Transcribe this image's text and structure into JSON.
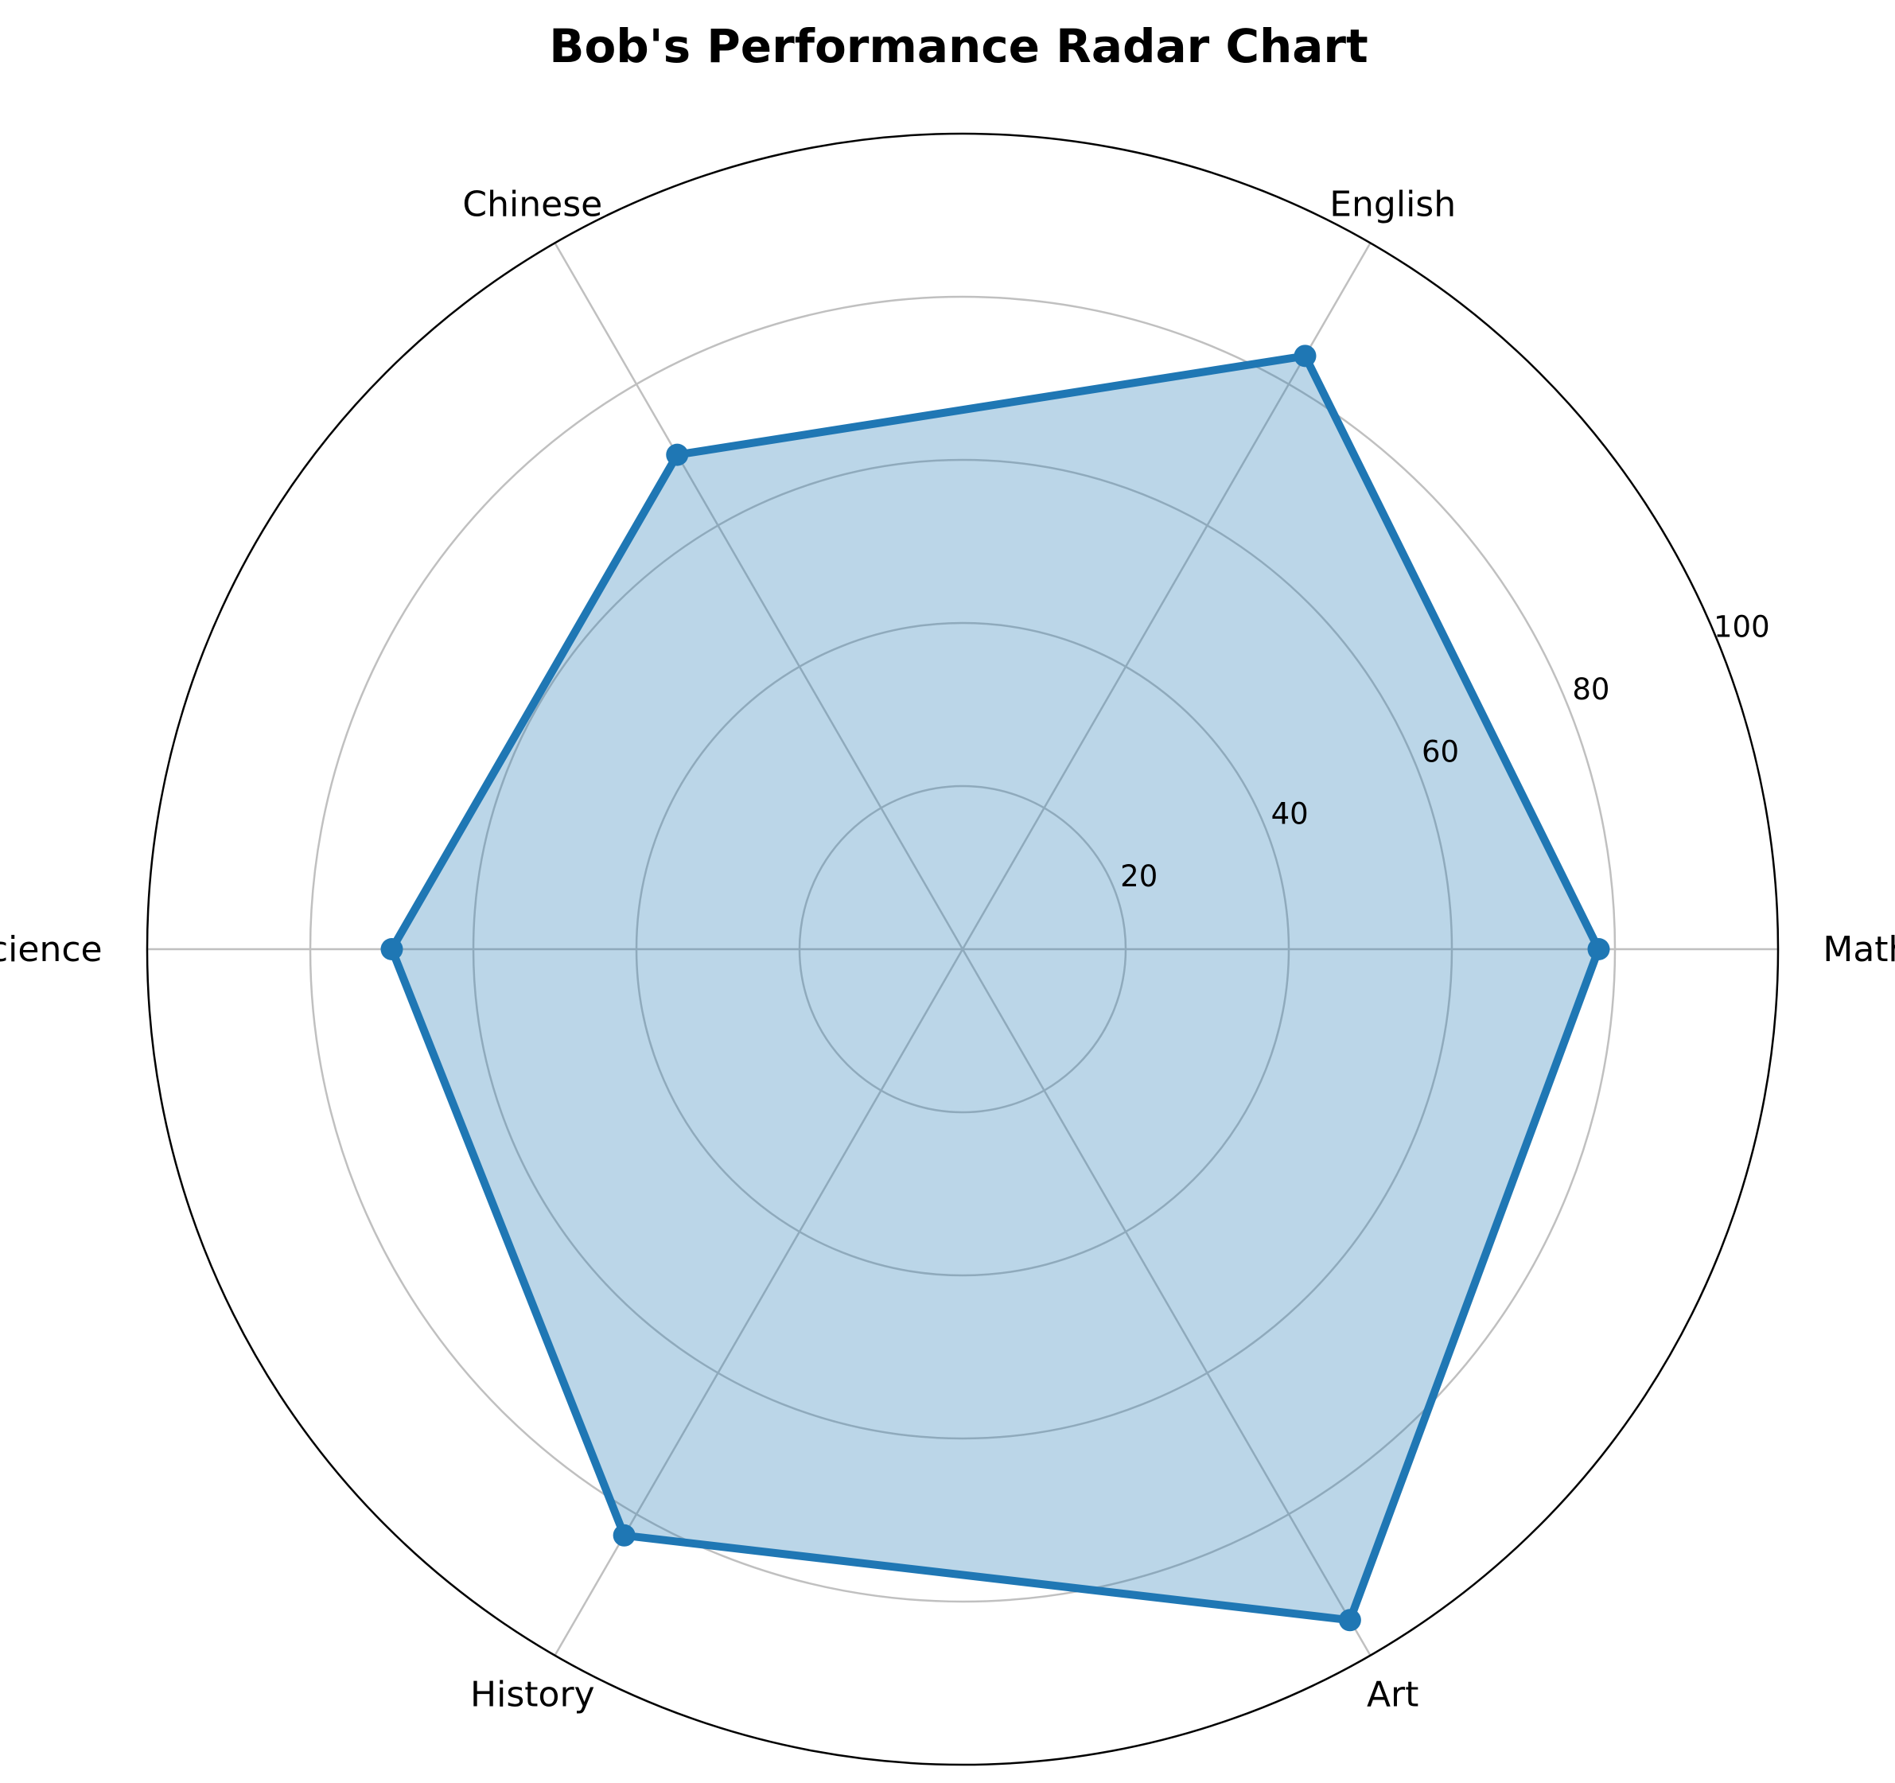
{
  "chart_data": {
    "type": "radar",
    "title": "Bob's Performance Radar Chart",
    "categories": [
      "Math",
      "English",
      "Chinese",
      "Science",
      "History",
      "Art"
    ],
    "series": [
      {
        "values": [
          78,
          84,
          70,
          70,
          83,
          95
        ]
      }
    ],
    "rlim": [
      0,
      100
    ],
    "rticks": [
      20,
      40,
      60,
      80,
      100
    ],
    "rtick_labels": [
      "20",
      "40",
      "60",
      "80",
      "100"
    ],
    "grid": true,
    "colors": {
      "line": "#1f77b4",
      "fill": "#1f77b4",
      "grid": "#c0c0c0",
      "frame": "#000000"
    }
  }
}
